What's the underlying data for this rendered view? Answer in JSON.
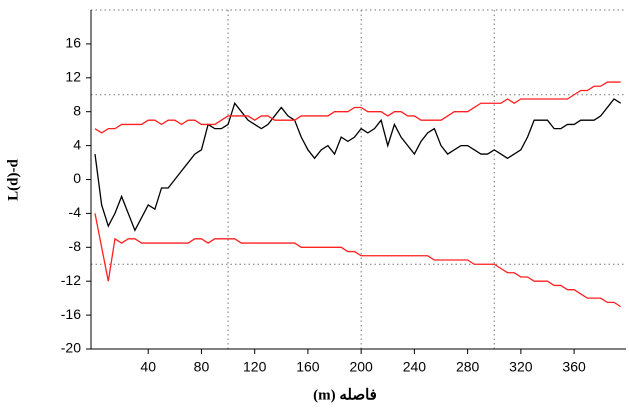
{
  "chart_data": {
    "type": "line",
    "xlabel": "فاصله (m)",
    "ylabel": "L(d)-d",
    "x": [
      0,
      5,
      10,
      15,
      20,
      25,
      30,
      35,
      40,
      45,
      50,
      55,
      60,
      65,
      70,
      75,
      80,
      85,
      90,
      95,
      100,
      105,
      110,
      115,
      120,
      125,
      130,
      135,
      140,
      145,
      150,
      155,
      160,
      165,
      170,
      175,
      180,
      185,
      190,
      195,
      200,
      205,
      210,
      215,
      220,
      225,
      230,
      235,
      240,
      245,
      250,
      255,
      260,
      265,
      270,
      275,
      280,
      285,
      290,
      295,
      300,
      305,
      310,
      315,
      320,
      325,
      330,
      335,
      340,
      345,
      350,
      355,
      360,
      365,
      370,
      375,
      380,
      385,
      390,
      395
    ],
    "series": [
      {
        "color": "#000000",
        "values": [
          3,
          -3,
          -5.5,
          -4,
          -2,
          -4,
          -6,
          -4.5,
          -3,
          -3.5,
          -1,
          -1,
          0,
          1,
          2,
          3,
          3.5,
          6.5,
          6,
          6,
          6.5,
          9,
          8,
          7,
          6.5,
          6,
          6.5,
          7.5,
          8.5,
          7.5,
          7,
          5,
          3.5,
          2.5,
          3.5,
          4,
          3,
          5,
          4.5,
          5,
          6,
          5.5,
          6,
          7,
          4,
          6.5,
          5,
          4,
          3,
          4.5,
          5.5,
          6,
          4,
          3,
          3.5,
          4,
          4,
          3.5,
          3,
          3,
          3.5,
          3,
          2.5,
          3,
          3.5,
          5,
          7,
          7,
          7,
          6,
          6,
          6.5,
          6.5,
          7,
          7,
          7,
          7.5,
          8.5,
          9.5,
          9
        ]
      },
      {
        "color": "#ff2020",
        "values": [
          6,
          5.5,
          6,
          6,
          6.5,
          6.5,
          6.5,
          6.5,
          7,
          7,
          6.5,
          7,
          7,
          6.5,
          7,
          7,
          6.5,
          6.5,
          6.5,
          7,
          7.5,
          7.5,
          7.5,
          7.5,
          7,
          7.5,
          7.5,
          7,
          7,
          7,
          7,
          7.5,
          7.5,
          7.5,
          7.5,
          7.5,
          8,
          8,
          8,
          8.5,
          8.5,
          8,
          8,
          8,
          7.5,
          8,
          8,
          7.5,
          7.5,
          7,
          7,
          7,
          7,
          7.5,
          8,
          8,
          8,
          8.5,
          9,
          9,
          9,
          9,
          9.5,
          9,
          9.5,
          9.5,
          9.5,
          9.5,
          9.5,
          9.5,
          9.5,
          9.5,
          10,
          10.5,
          10.5,
          11,
          11,
          11.5,
          11.5,
          11.5
        ]
      },
      {
        "color": "#ff2020",
        "values": [
          -4,
          -8,
          -12,
          -7,
          -7.5,
          -7,
          -7,
          -7.5,
          -7.5,
          -7.5,
          -7.5,
          -7.5,
          -7.5,
          -7.5,
          -7.5,
          -7,
          -7,
          -7.5,
          -7,
          -7,
          -7,
          -7,
          -7.5,
          -7.5,
          -7.5,
          -7.5,
          -7.5,
          -7.5,
          -7.5,
          -7.5,
          -7.5,
          -8,
          -8,
          -8,
          -8,
          -8,
          -8,
          -8,
          -8.5,
          -8.5,
          -9,
          -9,
          -9,
          -9,
          -9,
          -9,
          -9,
          -9,
          -9,
          -9,
          -9,
          -9.5,
          -9.5,
          -9.5,
          -9.5,
          -9.5,
          -9.5,
          -10,
          -10,
          -10,
          -10,
          -10.5,
          -11,
          -11,
          -11.5,
          -11.5,
          -12,
          -12,
          -12,
          -12.5,
          -12.5,
          -13,
          -13,
          -13.5,
          -14,
          -14,
          -14,
          -14.5,
          -14.5,
          -15
        ]
      }
    ],
    "xlim": [
      -3,
      399
    ],
    "ylim": [
      -20,
      20
    ],
    "xticks": [
      40,
      80,
      120,
      160,
      200,
      240,
      280,
      320,
      360
    ],
    "yticks": [
      -20,
      -16,
      -12,
      -8,
      -4,
      0,
      4,
      8,
      12,
      16
    ],
    "xgrid": [
      100,
      200,
      300
    ],
    "ygrid": [
      -10,
      10,
      20
    ]
  }
}
